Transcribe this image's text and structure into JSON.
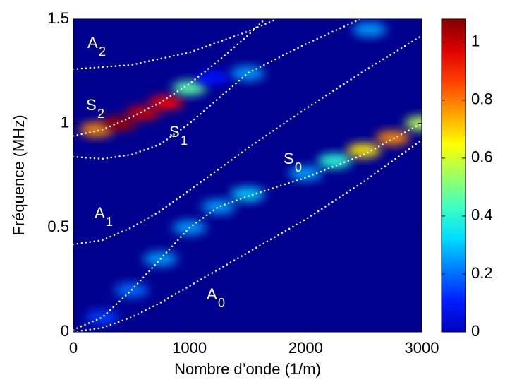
{
  "chart_data": {
    "type": "heatmap",
    "xlabel": "Nombre d’onde (1/m)",
    "ylabel": "Fréquence (MHz)",
    "xlim": [
      0,
      3000
    ],
    "xticks": [
      0,
      1000,
      2000,
      3000
    ],
    "ylim": [
      0,
      1.5
    ],
    "yticks": [
      0,
      0.5,
      1,
      1.5
    ],
    "clim": [
      0,
      1.08
    ],
    "cticks": [
      0,
      0.2,
      0.4,
      0.6,
      0.8,
      1
    ],
    "curve_color": "#ffffff",
    "curves": [
      {
        "x": [
          0,
          250,
          500,
          750,
          1000,
          1500,
          2000,
          2500,
          3000
        ],
        "y": [
          0,
          0.02,
          0.07,
          0.14,
          0.22,
          0.38,
          0.54,
          0.72,
          0.92
        ]
      },
      {
        "x": [
          0,
          250,
          500,
          750,
          1000,
          1250,
          1500,
          2000,
          2500,
          3000
        ],
        "y": [
          0.01,
          0.07,
          0.2,
          0.35,
          0.5,
          0.6,
          0.65,
          0.74,
          0.85,
          1.0
        ]
      },
      {
        "x": [
          0,
          250,
          500,
          750,
          1000,
          1500,
          2000,
          2500,
          3000
        ],
        "y": [
          0.42,
          0.44,
          0.5,
          0.58,
          0.68,
          0.88,
          1.07,
          1.25,
          1.42
        ]
      },
      {
        "x": [
          0,
          250,
          500,
          750,
          1000,
          1250,
          1500,
          2000,
          2470
        ],
        "y": [
          0.84,
          0.83,
          0.85,
          0.9,
          1.0,
          1.12,
          1.24,
          1.38,
          1.5
        ]
      },
      {
        "x": [
          0,
          500,
          1000,
          1500,
          1750
        ],
        "y": [
          1.26,
          1.28,
          1.34,
          1.44,
          1.5
        ]
      },
      {
        "x": [
          0,
          250,
          500,
          750,
          1000,
          1250,
          1500,
          1650
        ],
        "y": [
          0.94,
          0.97,
          1.03,
          1.1,
          1.19,
          1.3,
          1.42,
          1.5
        ]
      }
    ],
    "ridges": {
      "x": [
        200,
        400,
        600,
        800,
        1000,
        1200,
        250,
        500,
        750,
        1000,
        1250,
        1500,
        2000,
        2250,
        2500,
        2750,
        3000,
        1500,
        2550
      ],
      "y": [
        0.97,
        1.0,
        1.05,
        1.1,
        1.17,
        1.22,
        0.07,
        0.2,
        0.35,
        0.5,
        0.6,
        0.66,
        0.76,
        0.82,
        0.87,
        0.93,
        1.0,
        1.24,
        1.45
      ],
      "values": [
        0.8,
        1.05,
        1.0,
        0.95,
        0.5,
        0.15,
        0.2,
        0.25,
        0.3,
        0.3,
        0.3,
        0.35,
        0.3,
        0.45,
        0.7,
        0.8,
        0.6,
        0.3,
        0.3
      ]
    },
    "annotations": [
      {
        "text": "A",
        "sub": "2"
      },
      {
        "text": "S",
        "sub": "2"
      },
      {
        "text": "S",
        "sub": "1"
      },
      {
        "text": "A",
        "sub": "1"
      },
      {
        "text": "S",
        "sub": "0"
      },
      {
        "text": "A",
        "sub": "0"
      }
    ]
  }
}
